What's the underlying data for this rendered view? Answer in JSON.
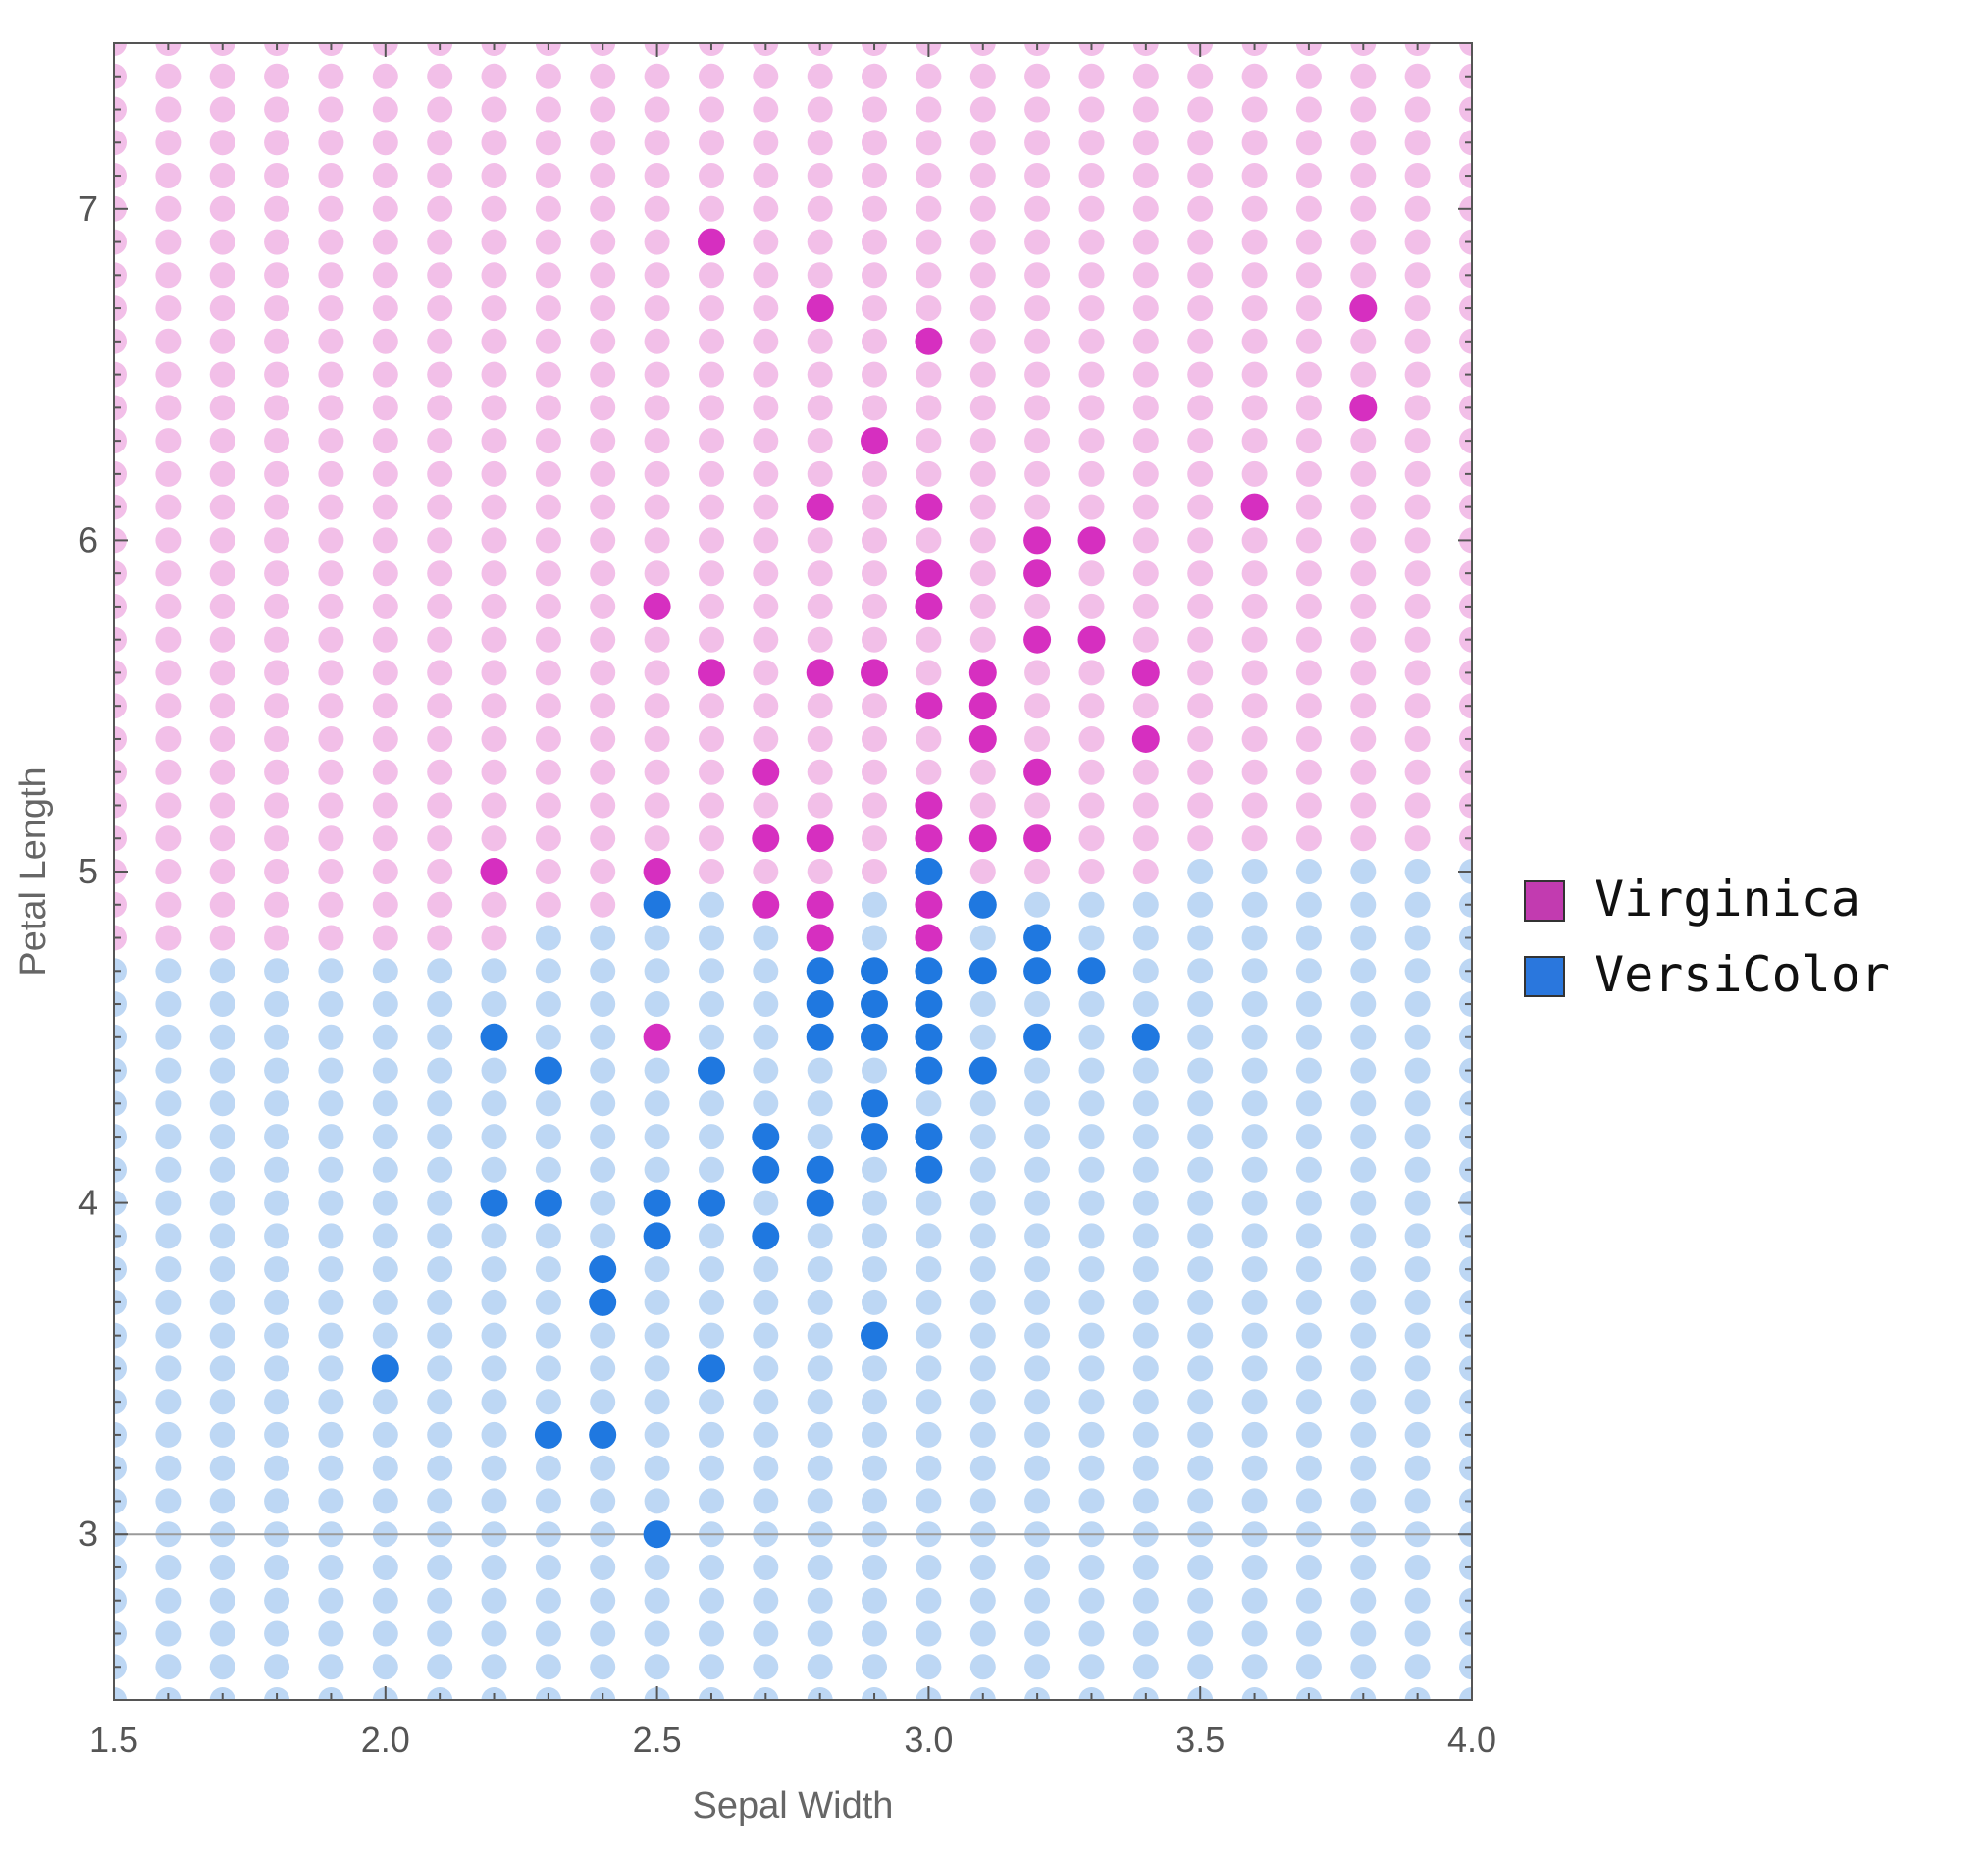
{
  "chart_data": {
    "type": "scatter",
    "xlabel": "Sepal Width",
    "ylabel": "Petal Length",
    "xlim": [
      1.5,
      4.0
    ],
    "ylim": [
      2.5,
      7.5
    ],
    "xticks": [
      "1.5",
      "2.0",
      "2.5",
      "3.0",
      "3.5",
      "4.0"
    ],
    "xtick_values": [
      1.5,
      2.0,
      2.5,
      3.0,
      3.5,
      4.0
    ],
    "yticks": [
      "3",
      "4",
      "5",
      "6",
      "7"
    ],
    "ytick_values": [
      3,
      4,
      5,
      6,
      7
    ],
    "reference_line_y": 3.0,
    "legend_position": "right",
    "background_grid": {
      "description": "decision-region grid of light dots every 0.1 in x and y",
      "x_step": 0.1,
      "y_step": 0.1,
      "virginica_boundary_rule": "petal length >= 4.8 for sepal width <= 2.2; >= 4.9 for 2.3-2.4; >= 5.0 for 2.5-3.4; >= 5.1 for >= 3.5",
      "light_colors": {
        "Virginica": "#f2bfe8",
        "VersiColor": "#bdd7f4"
      }
    },
    "series": [
      {
        "name": "Virginica",
        "color": "#d62fc0",
        "legend_color": "#c23bb0",
        "points": [
          [
            2.6,
            6.9
          ],
          [
            2.8,
            6.7
          ],
          [
            3.8,
            6.7
          ],
          [
            3.0,
            6.6
          ],
          [
            3.8,
            6.4
          ],
          [
            2.9,
            6.3
          ],
          [
            2.8,
            6.1
          ],
          [
            3.0,
            6.1
          ],
          [
            3.6,
            6.1
          ],
          [
            3.2,
            6.0
          ],
          [
            3.3,
            6.0
          ],
          [
            3.0,
            5.9
          ],
          [
            3.2,
            5.9
          ],
          [
            2.5,
            5.8
          ],
          [
            3.0,
            5.8
          ],
          [
            3.2,
            5.7
          ],
          [
            3.3,
            5.7
          ],
          [
            2.6,
            5.6
          ],
          [
            2.8,
            5.6
          ],
          [
            2.9,
            5.6
          ],
          [
            3.1,
            5.6
          ],
          [
            3.4,
            5.6
          ],
          [
            3.0,
            5.5
          ],
          [
            3.1,
            5.5
          ],
          [
            3.1,
            5.4
          ],
          [
            3.4,
            5.4
          ],
          [
            2.7,
            5.3
          ],
          [
            3.2,
            5.3
          ],
          [
            3.0,
            5.2
          ],
          [
            2.7,
            5.1
          ],
          [
            2.8,
            5.1
          ],
          [
            3.0,
            5.1
          ],
          [
            3.1,
            5.1
          ],
          [
            3.2,
            5.1
          ],
          [
            2.2,
            5.0
          ],
          [
            2.5,
            5.0
          ],
          [
            2.7,
            4.9
          ],
          [
            2.8,
            4.9
          ],
          [
            3.0,
            4.9
          ],
          [
            2.8,
            4.8
          ],
          [
            3.0,
            4.8
          ],
          [
            2.5,
            4.5
          ]
        ]
      },
      {
        "name": "VersiColor",
        "color": "#1f78e0",
        "legend_color": "#2a77dd",
        "points": [
          [
            3.0,
            5.0
          ],
          [
            2.5,
            4.9
          ],
          [
            3.1,
            4.9
          ],
          [
            3.2,
            4.8
          ],
          [
            2.8,
            4.7
          ],
          [
            2.9,
            4.7
          ],
          [
            3.0,
            4.7
          ],
          [
            3.1,
            4.7
          ],
          [
            3.2,
            4.7
          ],
          [
            3.3,
            4.7
          ],
          [
            2.8,
            4.6
          ],
          [
            2.9,
            4.6
          ],
          [
            3.0,
            4.6
          ],
          [
            2.2,
            4.5
          ],
          [
            2.8,
            4.5
          ],
          [
            2.9,
            4.5
          ],
          [
            3.0,
            4.5
          ],
          [
            3.2,
            4.5
          ],
          [
            3.4,
            4.5
          ],
          [
            2.3,
            4.4
          ],
          [
            2.6,
            4.4
          ],
          [
            3.0,
            4.4
          ],
          [
            3.1,
            4.4
          ],
          [
            2.9,
            4.3
          ],
          [
            2.7,
            4.2
          ],
          [
            2.9,
            4.2
          ],
          [
            3.0,
            4.2
          ],
          [
            2.7,
            4.1
          ],
          [
            2.8,
            4.1
          ],
          [
            3.0,
            4.1
          ],
          [
            2.2,
            4.0
          ],
          [
            2.3,
            4.0
          ],
          [
            2.5,
            4.0
          ],
          [
            2.6,
            4.0
          ],
          [
            2.8,
            4.0
          ],
          [
            2.5,
            3.9
          ],
          [
            2.7,
            3.9
          ],
          [
            2.4,
            3.8
          ],
          [
            2.4,
            3.7
          ],
          [
            2.9,
            3.6
          ],
          [
            2.0,
            3.5
          ],
          [
            2.6,
            3.5
          ],
          [
            2.3,
            3.3
          ],
          [
            2.4,
            3.3
          ],
          [
            2.5,
            3.0
          ]
        ]
      }
    ]
  }
}
